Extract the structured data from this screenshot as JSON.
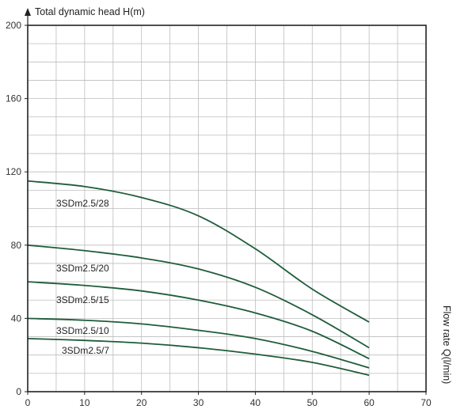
{
  "chart_data": {
    "type": "line",
    "title": "",
    "ylabel": "Total dynamic head H(m)",
    "xlabel": "Flow rate Q(l/min)",
    "xlim": [
      0,
      70
    ],
    "ylim": [
      0,
      200
    ],
    "x_ticks": [
      0,
      10,
      20,
      30,
      40,
      50,
      60,
      70
    ],
    "y_ticks": [
      0,
      40,
      80,
      120,
      160,
      200
    ],
    "x_tick_labels": [
      "0",
      "10",
      "20",
      "30",
      "40",
      "50",
      "60",
      "70"
    ],
    "y_tick_labels": [
      "0",
      "40",
      "80",
      "120",
      "160",
      "200"
    ],
    "grid": true,
    "grid_x_minor_step": 5,
    "grid_y_minor_step": 10,
    "line_color": "#1f5c3a",
    "grid_color": "#bdbdbd",
    "series": [
      {
        "name": "3SDm2.5/28",
        "x": [
          0,
          10,
          20,
          30,
          40,
          50,
          60
        ],
        "y": [
          115,
          112,
          106,
          96,
          78,
          56,
          38
        ]
      },
      {
        "name": "3SDm2.5/20",
        "x": [
          0,
          10,
          20,
          30,
          40,
          50,
          60
        ],
        "y": [
          80,
          77,
          73,
          67,
          57,
          42,
          24
        ]
      },
      {
        "name": "3SDm2.5/15",
        "x": [
          0,
          10,
          20,
          30,
          40,
          50,
          60
        ],
        "y": [
          60,
          58,
          55,
          50,
          43,
          33,
          18
        ]
      },
      {
        "name": "3SDm2.5/10",
        "x": [
          0,
          10,
          20,
          30,
          40,
          50,
          60
        ],
        "y": [
          40,
          39,
          37,
          33.5,
          29,
          22,
          13
        ]
      },
      {
        "name": "3SDm2.5/7",
        "x": [
          0,
          10,
          20,
          30,
          40,
          50,
          60
        ],
        "y": [
          29,
          28,
          26.5,
          24,
          20.5,
          16,
          9
        ]
      }
    ]
  }
}
